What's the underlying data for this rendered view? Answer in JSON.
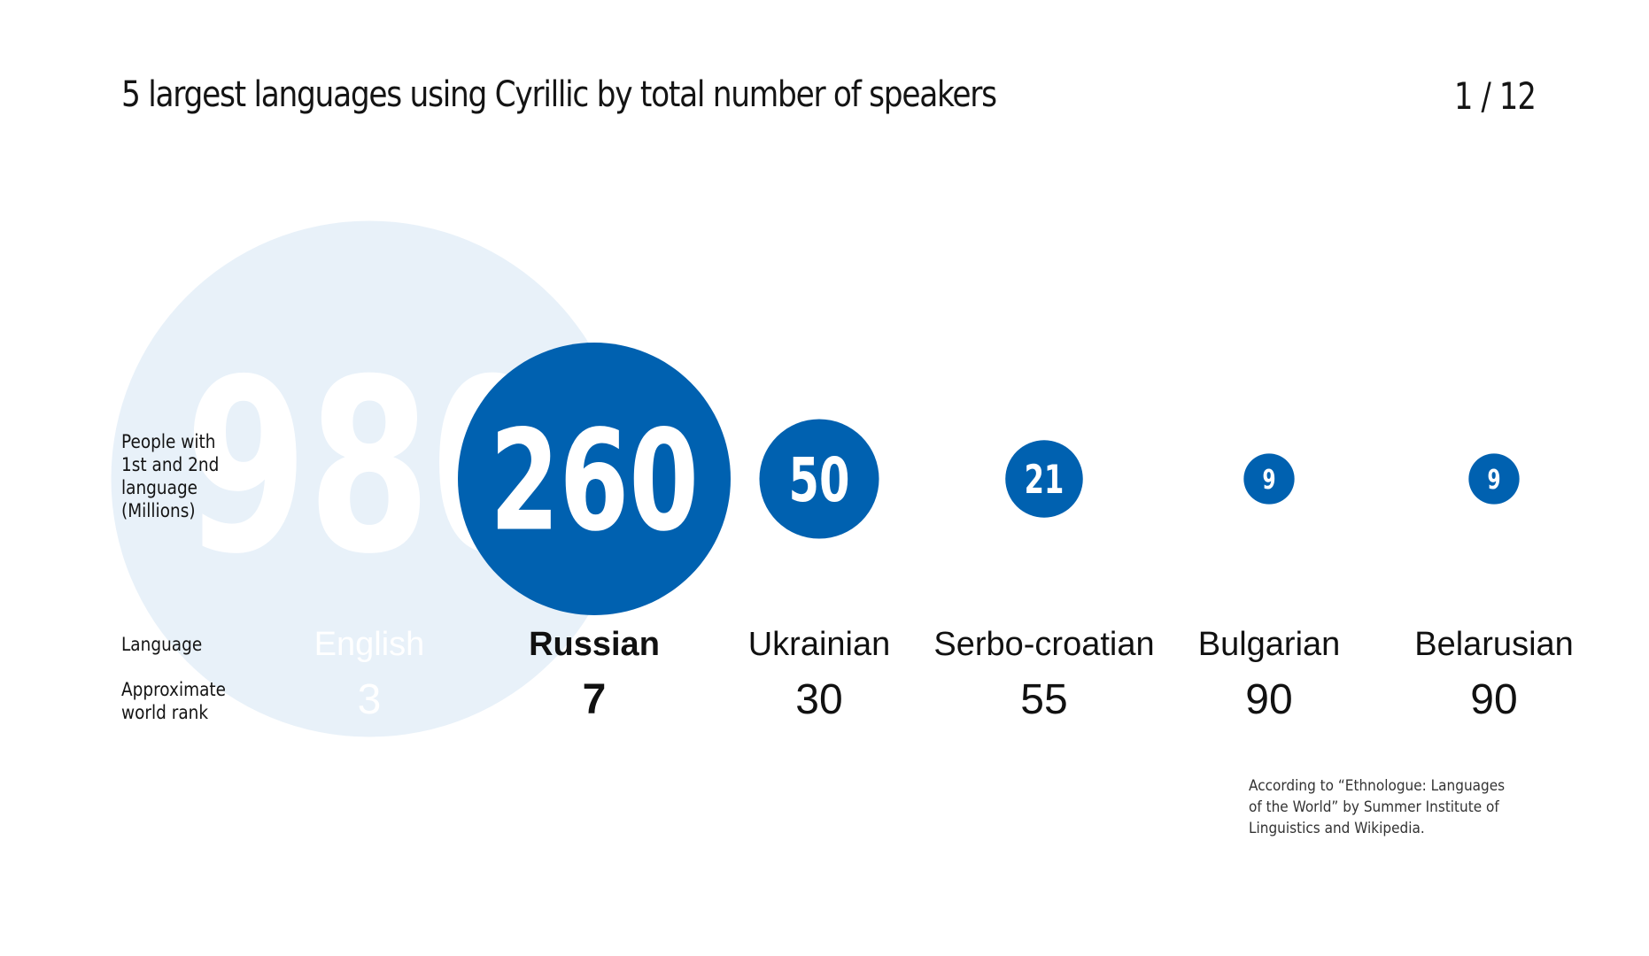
{
  "title": "5 largest languages using Cyrillic by total number of speakers",
  "page_counter": "1 / 12",
  "row_labels": {
    "speakers": "People with\n1st and 2nd\nlanguage\n(Millions)",
    "language": "Language",
    "rank": "Approximate\nworld rank"
  },
  "source_note": "According to “Ethnologue: Languages of the World” by Summer Institute of Linguistics and Wikipedia.",
  "colors": {
    "accent": "#0061b0",
    "reference_circle": "#e8f1f9",
    "reference_text": "#ffffff",
    "text": "#111111"
  },
  "chart_data": {
    "type": "bubble",
    "title": "5 largest languages using Cyrillic by total number of speakers",
    "categories": [
      "English",
      "Russian",
      "Ukrainian",
      "Serbo-croatian",
      "Bulgarian",
      "Belarusian"
    ],
    "series": [
      {
        "values": [
          980,
          260,
          50,
          21,
          9,
          9
        ]
      }
    ],
    "ranks": [
      3,
      7,
      30,
      55,
      90,
      90
    ],
    "value_labels": [
      "980",
      "260",
      "50",
      "21",
      "9",
      "9"
    ],
    "reference_category": "English",
    "highlight_category": "Russian",
    "unit": "Millions"
  }
}
